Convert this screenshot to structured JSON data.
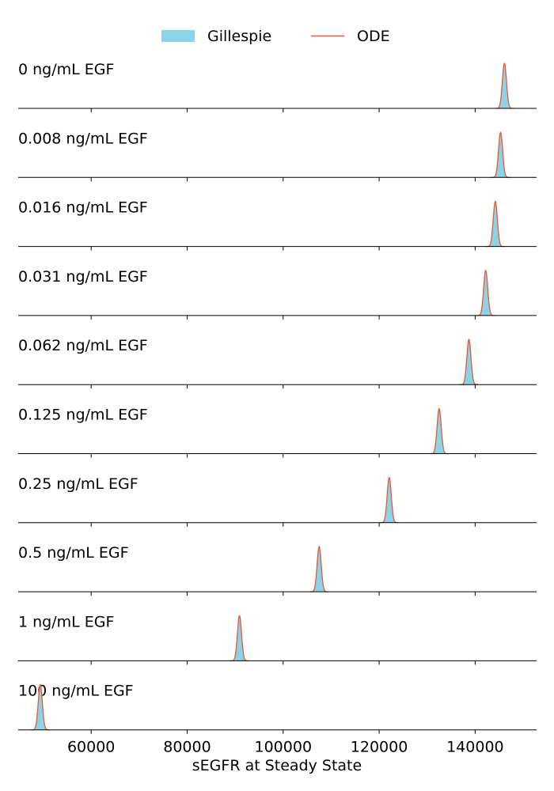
{
  "chart_data": {
    "type": "area",
    "legend": {
      "position": "top-center",
      "entries": [
        {
          "name": "Gillespie",
          "style": "filled-area",
          "color": "#8bd3e6"
        },
        {
          "name": "ODE",
          "style": "line",
          "color": "#ee5533"
        }
      ]
    },
    "xlabel": "sEGFR at Steady State",
    "xlim": [
      44800,
      152800
    ],
    "xticks": [
      60000,
      80000,
      100000,
      120000,
      140000
    ],
    "xtick_labels": [
      "60000",
      "80000",
      "100000",
      "120000",
      "140000"
    ],
    "grid": false,
    "panels": [
      {
        "label": "0 ng/mL EGF",
        "peak_x": 146100
      },
      {
        "label": "0.008 ng/mL EGF",
        "peak_x": 145300
      },
      {
        "label": "0.016 ng/mL EGF",
        "peak_x": 144200
      },
      {
        "label": "0.031 ng/mL EGF",
        "peak_x": 142200
      },
      {
        "label": "0.062 ng/mL EGF",
        "peak_x": 138700
      },
      {
        "label": "0.125 ng/mL EGF",
        "peak_x": 132500
      },
      {
        "label": "0.25 ng/mL EGF",
        "peak_x": 122100
      },
      {
        "label": "0.5 ng/mL EGF",
        "peak_x": 107500
      },
      {
        "label": "1 ng/mL EGF",
        "peak_x": 90900
      },
      {
        "label": "100 ng/mL EGF",
        "peak_x": 49400
      }
    ]
  }
}
